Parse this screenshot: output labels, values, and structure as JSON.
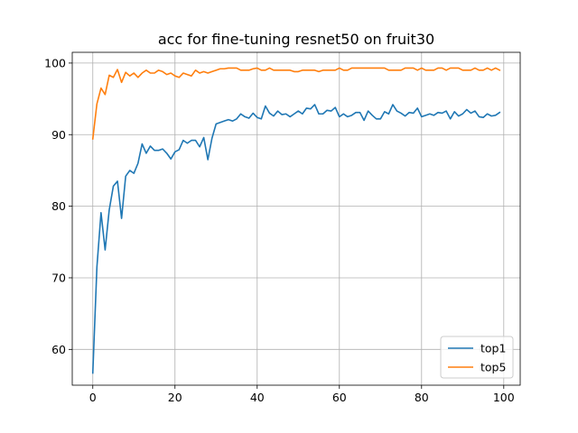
{
  "chart_data": {
    "type": "line",
    "title": "acc for fine-tuning resnet50 on fruit30",
    "xlabel": "",
    "ylabel": "",
    "xlim": [
      -5,
      104
    ],
    "ylim": [
      55,
      101.5
    ],
    "xticks": [
      0,
      20,
      40,
      60,
      80,
      100
    ],
    "yticks": [
      60,
      70,
      80,
      90,
      100
    ],
    "grid": true,
    "legend_position": "lower-right",
    "series": [
      {
        "name": "top1",
        "color": "#1f77b4",
        "x": [
          0,
          1,
          2,
          3,
          4,
          5,
          6,
          7,
          8,
          9,
          10,
          11,
          12,
          13,
          14,
          15,
          16,
          17,
          18,
          19,
          20,
          21,
          22,
          23,
          24,
          25,
          26,
          27,
          28,
          29,
          30,
          31,
          32,
          33,
          34,
          35,
          36,
          37,
          38,
          39,
          40,
          41,
          42,
          43,
          44,
          45,
          46,
          47,
          48,
          49,
          50,
          51,
          52,
          53,
          54,
          55,
          56,
          57,
          58,
          59,
          60,
          61,
          62,
          63,
          64,
          65,
          66,
          67,
          68,
          69,
          70,
          71,
          72,
          73,
          74,
          75,
          76,
          77,
          78,
          79,
          80,
          81,
          82,
          83,
          84,
          85,
          86,
          87,
          88,
          89,
          90,
          91,
          92,
          93,
          94,
          95,
          96,
          97,
          98,
          99
        ],
        "values": [
          56.7,
          71.5,
          79.1,
          73.9,
          79.5,
          82.8,
          83.5,
          78.3,
          84.2,
          85.0,
          84.6,
          86.0,
          88.7,
          87.4,
          88.4,
          87.8,
          87.8,
          88.0,
          87.4,
          86.6,
          87.6,
          87.9,
          89.2,
          88.8,
          89.2,
          89.2,
          88.3,
          89.6,
          86.5,
          89.5,
          91.5,
          91.7,
          91.9,
          92.1,
          91.9,
          92.2,
          92.9,
          92.5,
          92.3,
          93.0,
          92.4,
          92.2,
          94.0,
          93.0,
          92.6,
          93.3,
          92.8,
          92.9,
          92.5,
          92.9,
          93.3,
          92.9,
          93.7,
          93.6,
          94.2,
          92.9,
          92.9,
          93.4,
          93.3,
          93.8,
          92.5,
          92.9,
          92.5,
          92.7,
          93.1,
          93.1,
          92.0,
          93.3,
          92.7,
          92.2,
          92.2,
          93.2,
          92.9,
          94.2,
          93.3,
          93.0,
          92.6,
          93.1,
          93.0,
          93.7,
          92.5,
          92.7,
          92.9,
          92.7,
          93.1,
          93.0,
          93.3,
          92.2,
          93.2,
          92.6,
          92.9,
          93.5,
          93.0,
          93.3,
          92.5,
          92.4,
          92.9,
          92.6,
          92.7,
          93.1
        ]
      },
      {
        "name": "top5",
        "color": "#ff7f0e",
        "x": [
          0,
          1,
          2,
          3,
          4,
          5,
          6,
          7,
          8,
          9,
          10,
          11,
          12,
          13,
          14,
          15,
          16,
          17,
          18,
          19,
          20,
          21,
          22,
          23,
          24,
          25,
          26,
          27,
          28,
          29,
          30,
          31,
          32,
          33,
          34,
          35,
          36,
          37,
          38,
          39,
          40,
          41,
          42,
          43,
          44,
          45,
          46,
          47,
          48,
          49,
          50,
          51,
          52,
          53,
          54,
          55,
          56,
          57,
          58,
          59,
          60,
          61,
          62,
          63,
          64,
          65,
          66,
          67,
          68,
          69,
          70,
          71,
          72,
          73,
          74,
          75,
          76,
          77,
          78,
          79,
          80,
          81,
          82,
          83,
          84,
          85,
          86,
          87,
          88,
          89,
          90,
          91,
          92,
          93,
          94,
          95,
          96,
          97,
          98,
          99
        ],
        "values": [
          89.4,
          94.3,
          96.5,
          95.6,
          98.3,
          98.0,
          99.1,
          97.3,
          98.7,
          98.2,
          98.6,
          98.0,
          98.6,
          99.0,
          98.6,
          98.6,
          99.0,
          98.8,
          98.4,
          98.6,
          98.2,
          98.0,
          98.6,
          98.4,
          98.2,
          99.0,
          98.6,
          98.8,
          98.6,
          98.8,
          99.0,
          99.2,
          99.2,
          99.3,
          99.3,
          99.3,
          99.0,
          99.0,
          99.0,
          99.2,
          99.3,
          99.0,
          99.0,
          99.3,
          99.0,
          99.0,
          99.0,
          99.0,
          99.0,
          98.8,
          98.8,
          99.0,
          99.0,
          99.0,
          99.0,
          98.8,
          99.0,
          99.0,
          99.0,
          99.0,
          99.3,
          99.0,
          99.0,
          99.3,
          99.3,
          99.3,
          99.3,
          99.3,
          99.3,
          99.3,
          99.3,
          99.3,
          99.0,
          99.0,
          99.0,
          99.0,
          99.3,
          99.3,
          99.3,
          99.0,
          99.3,
          99.0,
          99.0,
          99.0,
          99.3,
          99.3,
          99.0,
          99.3,
          99.3,
          99.3,
          99.0,
          99.0,
          99.0,
          99.3,
          99.0,
          99.0,
          99.3,
          99.0,
          99.3,
          99.0
        ]
      }
    ]
  }
}
